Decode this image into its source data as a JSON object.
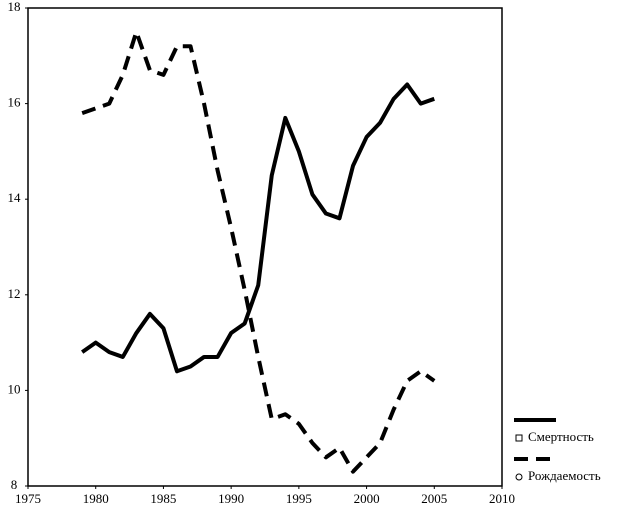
{
  "chart_data": {
    "type": "line",
    "x": [
      1979,
      1980,
      1981,
      1982,
      1983,
      1984,
      1985,
      1986,
      1987,
      1988,
      1989,
      1990,
      1991,
      1992,
      1993,
      1994,
      1995,
      1996,
      1997,
      1998,
      1999,
      2000,
      2001,
      2002,
      2003,
      2004,
      2005
    ],
    "series": [
      {
        "name": "Смертность",
        "color": "#000000",
        "dash": "solid",
        "values": [
          10.8,
          11.0,
          10.8,
          10.7,
          11.2,
          11.6,
          11.3,
          10.4,
          10.5,
          10.7,
          10.7,
          11.2,
          11.4,
          12.2,
          14.5,
          15.7,
          15.0,
          14.1,
          13.7,
          13.6,
          14.7,
          15.3,
          15.6,
          16.1,
          16.4,
          16.0,
          16.1
        ]
      },
      {
        "name": "Рождаемость",
        "color": "#000000",
        "dash": "dashed",
        "values": [
          15.8,
          15.9,
          16.0,
          16.6,
          17.5,
          16.7,
          16.6,
          17.2,
          17.2,
          16.0,
          14.6,
          13.4,
          12.1,
          10.7,
          9.4,
          9.5,
          9.3,
          8.9,
          8.6,
          8.8,
          8.3,
          8.6,
          8.9,
          9.6,
          10.2,
          10.4,
          10.2
        ]
      }
    ],
    "xlim": [
      1975,
      2010
    ],
    "xticks": [
      1975,
      1980,
      1985,
      1990,
      1995,
      2000,
      2005,
      2010
    ],
    "ylim": [
      8,
      18
    ],
    "yticks": [
      8,
      10,
      12,
      14,
      16,
      18
    ],
    "legend": "right-bottom"
  }
}
